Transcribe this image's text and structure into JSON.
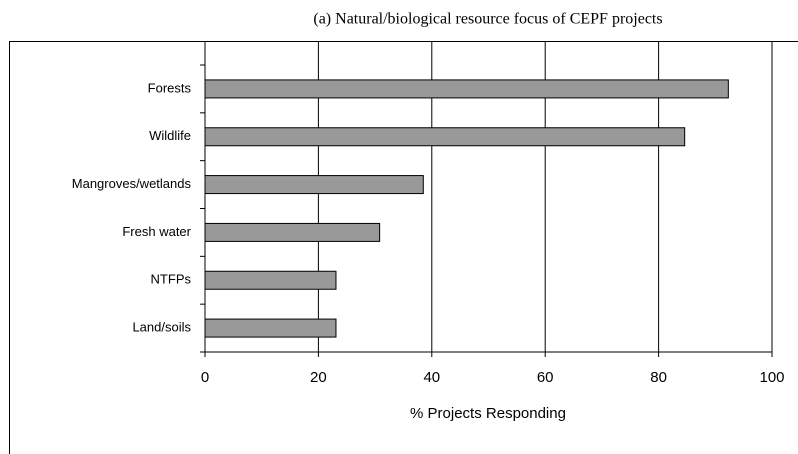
{
  "chart_data": {
    "type": "hbar",
    "title": "(a) Natural/biological resource focus of CEPF projects",
    "categories": [
      "Forests",
      "Wildlife",
      "Mangroves/wetlands",
      "Fresh water",
      "NTFPs",
      "Land/soils"
    ],
    "values": [
      92.3,
      84.6,
      38.5,
      30.8,
      23.1,
      23.1
    ],
    "color": "#999999",
    "xlim": [
      0,
      100
    ],
    "xticks": [
      0,
      20,
      40,
      60,
      80,
      100
    ],
    "grid": true,
    "xlabel": "% Projects Responding"
  }
}
